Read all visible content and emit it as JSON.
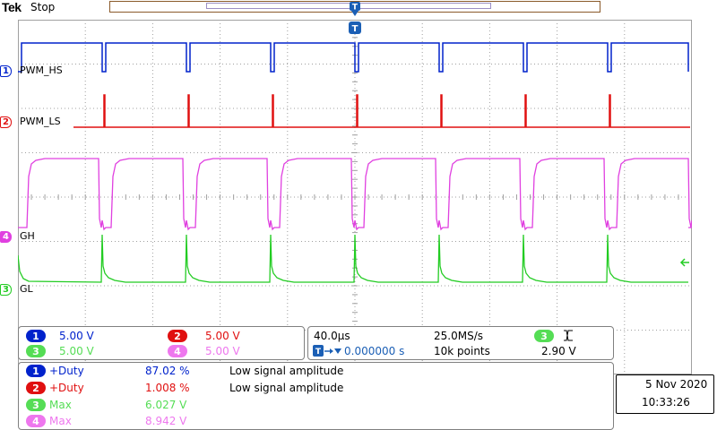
{
  "header": {
    "brand": "Tek",
    "run_state": "Stop"
  },
  "colors": {
    "ch1": "#0022cc",
    "ch2": "#e01010",
    "ch3": "#22cc22",
    "ch4": "#e040e0",
    "grid": "#a0a0a0"
  },
  "channels": [
    {
      "num": "1",
      "label": "PWM_HS"
    },
    {
      "num": "2",
      "label": "PWM_LS"
    },
    {
      "num": "4",
      "label": "GH"
    },
    {
      "num": "3",
      "label": "GL"
    }
  ],
  "vertical": {
    "ch1_scale": "5.00 V",
    "ch2_scale": "5.00 V",
    "ch3_scale": "5.00 V",
    "ch4_scale": "5.00 V"
  },
  "horizontal": {
    "time_div": "40.0µs",
    "sample_rate": "25.0MS/s",
    "trigger_pos": "0.000000 s",
    "record_length": "10k points",
    "trigger_channel": "3",
    "trigger_level": "2.90 V"
  },
  "measurements": [
    {
      "num": "1",
      "name": "+Duty",
      "value": "87.02 %",
      "note": "Low signal amplitude"
    },
    {
      "num": "2",
      "name": "+Duty",
      "value": "1.008 %",
      "note": "Low signal amplitude"
    },
    {
      "num": "3",
      "name": "Max",
      "value": "6.027 V",
      "note": ""
    },
    {
      "num": "4",
      "name": "Max",
      "value": "8.942 V",
      "note": ""
    }
  ],
  "datetime": {
    "date": "5 Nov  2020",
    "time": "10:33:26"
  }
}
